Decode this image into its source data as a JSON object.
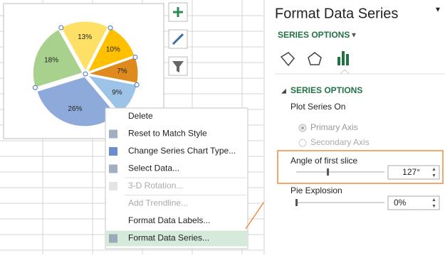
{
  "chart_data": {
    "type": "pie",
    "values": [
      26,
      18,
      13,
      10,
      7,
      9
    ],
    "value_labels": [
      "26%",
      "18%",
      "13%",
      "10%",
      "7%",
      "9%"
    ],
    "colors": [
      "#8eaadb",
      "#a9d18e",
      "#ffe066",
      "#ffc000",
      "#de8a1d",
      "#9dc3e6"
    ]
  },
  "context_menu": {
    "items": [
      "Delete",
      "Reset to Match Style",
      "Change Series Chart Type...",
      "Select Data...",
      "3-D Rotation...",
      "Add Trendline...",
      "Format Data Labels...",
      "Format Data Series..."
    ]
  },
  "format_panel": {
    "title": "Format Data Series",
    "dropdown": "SERIES OPTIONS",
    "section": "SERIES OPTIONS",
    "plot_series_on": "Plot Series On",
    "primary_axis": "Primary Axis",
    "secondary_axis": "Secondary Axis",
    "angle_label": "Angle of first slice",
    "angle_value": "127°",
    "explosion_label": "Pie Explosion",
    "explosion_value": "0%"
  }
}
